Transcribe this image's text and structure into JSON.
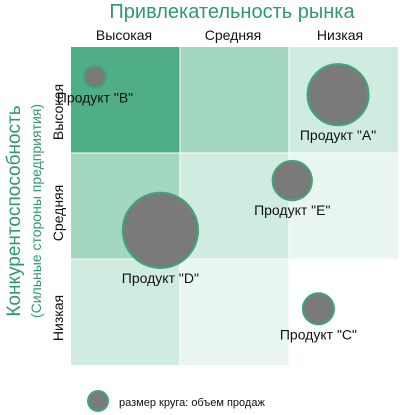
{
  "title": "Привлекательность рынка",
  "y_axis": {
    "title": "Конкурентоспособность",
    "subtitle": "(Сильные стороны предприятия)"
  },
  "column_labels": [
    "Высокая",
    "Средняя",
    "Низкая"
  ],
  "row_labels": [
    "Высокая",
    "Средняя",
    "Низкая"
  ],
  "cell_shades": [
    [
      "dark",
      "medium",
      "light"
    ],
    [
      "medium",
      "light",
      "lightest"
    ],
    [
      "light",
      "lightest",
      "white"
    ]
  ],
  "colors": {
    "title": "#2e9a6e",
    "y_title": "#2e9a6e",
    "grid_line": "#ffffff",
    "bubble_fill": "#7a7a7a",
    "bubble_stroke": "#3aa878",
    "shade_dark": "#4fae86",
    "shade_medium": "#a3d7bf",
    "shade_light": "#d0ebdf",
    "shade_lightest": "#e8f6ef",
    "shade_white": "#ffffff"
  },
  "products": [
    {
      "label": "Продукт \"В\"",
      "attractiveness_col": 0.22,
      "competitiveness_row": 0.28,
      "sales_volume": 1
    },
    {
      "label": "Продукт \"А\"",
      "attractiveness_col": 2.45,
      "competitiveness_row": 0.45,
      "sales_volume": 7.7
    },
    {
      "label": "Продукт \"Е\"",
      "attractiveness_col": 2.03,
      "competitiveness_row": 1.26,
      "sales_volume": 3.2
    },
    {
      "label": "Продукт \"D\"",
      "attractiveness_col": 0.82,
      "competitiveness_row": 1.73,
      "sales_volume": 11.7
    },
    {
      "label": "Продукт \"С\"",
      "attractiveness_col": 2.27,
      "competitiveness_row": 2.47,
      "sales_volume": 2
    }
  ],
  "legend": {
    "text": "размер круга: объем продаж"
  }
}
